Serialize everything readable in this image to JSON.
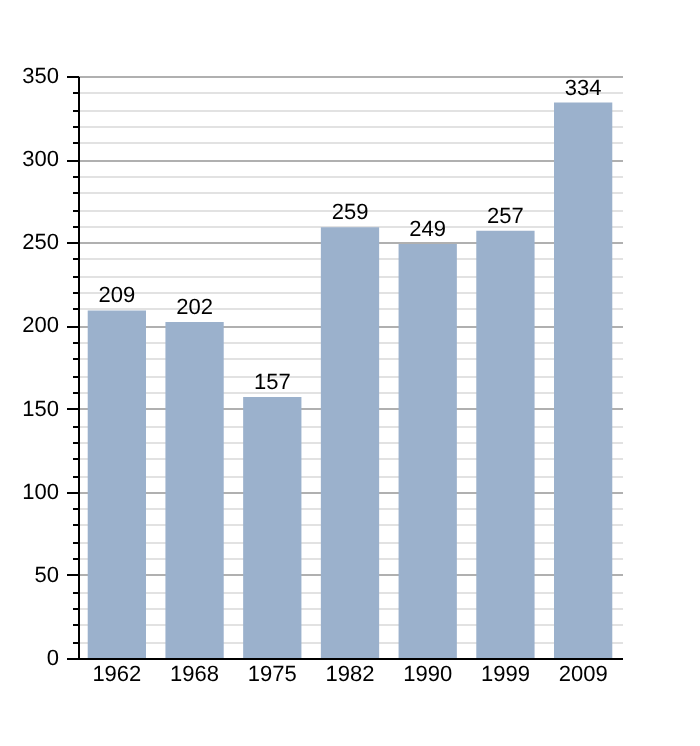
{
  "chart_data": {
    "type": "bar",
    "categories": [
      "1962",
      "1968",
      "1975",
      "1982",
      "1990",
      "1999",
      "2009"
    ],
    "values": [
      209,
      202,
      157,
      259,
      249,
      257,
      334
    ],
    "color": "#9bb1cc",
    "ylim": [
      0,
      350
    ],
    "yticks": [
      0,
      {
        "value": 10,
        "label": null
      },
      {
        "value": 20,
        "label": null
      },
      {
        "value": 30,
        "label": null
      },
      {
        "value": 40,
        "label": null
      },
      50,
      {
        "value": 60,
        "label": null
      },
      {
        "value": 70,
        "label": null
      },
      {
        "value": 80,
        "label": null
      },
      {
        "value": 90,
        "label": null
      },
      100,
      {
        "value": 110,
        "label": null
      },
      {
        "value": 120,
        "label": null
      },
      {
        "value": 130,
        "label": null
      },
      {
        "value": 140,
        "label": null
      },
      150,
      {
        "value": 160,
        "label": null
      },
      {
        "value": 170,
        "label": null
      },
      {
        "value": 180,
        "label": null
      },
      {
        "value": 190,
        "label": null
      },
      200,
      {
        "value": 210,
        "label": null
      },
      {
        "value": 220,
        "label": null
      },
      {
        "value": 230,
        "label": null
      },
      {
        "value": 240,
        "label": null
      },
      250,
      {
        "value": 260,
        "label": null
      },
      {
        "value": 270,
        "label": null
      },
      {
        "value": 280,
        "label": null
      },
      {
        "value": 290,
        "label": null
      },
      300,
      {
        "value": 310,
        "label": null
      },
      {
        "value": 320,
        "label": null
      },
      {
        "value": 330,
        "label": null
      },
      {
        "value": 340,
        "label": null
      },
      350
    ],
    "grid": "y",
    "data_labels": true
  }
}
